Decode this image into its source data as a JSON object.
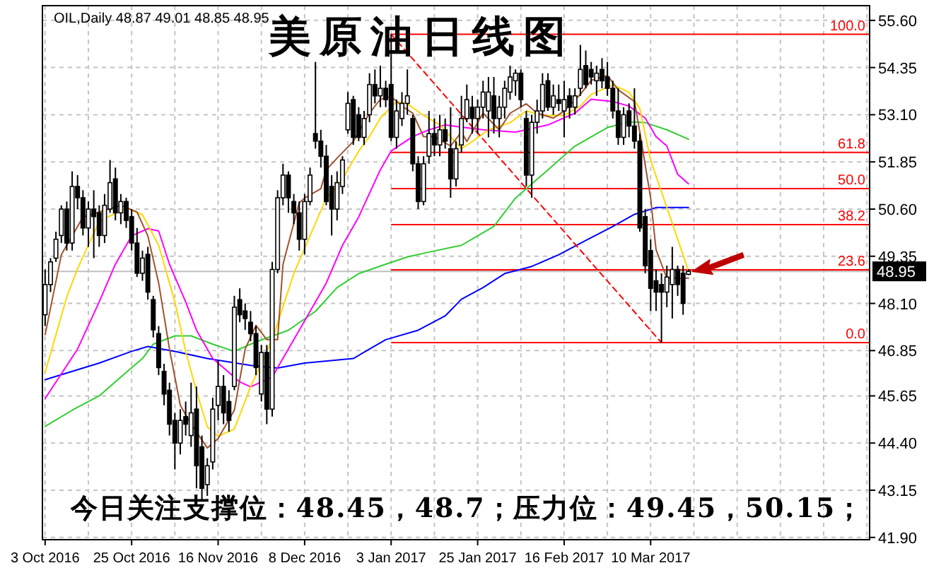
{
  "chart_data": {
    "type": "candlestick",
    "title": "美原油日线图",
    "subtitle": "OIL,Daily 48.87 49.01 48.85 48.95",
    "annotations": [
      "今日关注支撑位：48.45，48.7；压力位：49.45，50.15；",
      {
        "text": "100.0",
        "y": 55.23
      },
      {
        "text": "61.8",
        "y": 52.1
      },
      {
        "text": "50.0",
        "y": 51.14
      },
      {
        "text": "38.2",
        "y": 50.19
      },
      {
        "text": "23.6",
        "y": 48.99
      },
      {
        "text": "0.0",
        "y": 47.06
      }
    ],
    "categories": [
      "3 Oct 2016",
      null,
      null,
      null,
      null,
      null,
      null,
      null,
      null,
      null,
      null,
      null,
      null,
      null,
      null,
      null,
      "25 Oct 2016",
      null,
      null,
      null,
      null,
      null,
      null,
      null,
      null,
      null,
      null,
      null,
      null,
      null,
      null,
      null,
      "16 Nov 2016",
      null,
      null,
      null,
      null,
      null,
      null,
      null,
      null,
      null,
      null,
      null,
      null,
      null,
      null,
      null,
      "8 Dec 2016",
      null,
      null,
      null,
      null,
      null,
      null,
      null,
      null,
      null,
      null,
      null,
      null,
      null,
      null,
      null,
      "3 Jan 2017",
      null,
      null,
      null,
      null,
      null,
      null,
      null,
      null,
      null,
      null,
      null,
      null,
      null,
      null,
      null,
      "25 Jan 2017",
      null,
      null,
      null,
      null,
      null,
      null,
      null,
      null,
      null,
      null,
      null,
      null,
      null,
      null,
      null,
      "16 Feb 2017",
      null,
      null,
      null,
      null,
      null,
      null,
      null,
      null,
      null,
      null,
      null,
      null,
      null,
      null,
      null,
      "10 Mar 2017",
      null,
      null,
      null,
      null,
      null,
      null,
      null,
      null,
      null,
      null,
      null,
      null,
      null,
      null,
      null,
      null,
      null,
      null,
      null,
      null,
      null,
      null,
      null,
      null,
      null,
      null,
      null,
      null,
      null,
      null,
      null,
      null,
      null,
      null,
      null,
      null,
      null,
      null,
      null,
      null
    ],
    "ohlc": [
      [
        47.8,
        49.0,
        47.5,
        48.6
      ],
      [
        48.6,
        49.3,
        48.4,
        49.2
      ],
      [
        49.3,
        50.0,
        49.2,
        49.8
      ],
      [
        49.9,
        50.7,
        49.7,
        50.6
      ],
      [
        50.6,
        50.8,
        49.5,
        49.7
      ],
      [
        49.7,
        51.6,
        49.5,
        51.2
      ],
      [
        51.2,
        51.5,
        50.6,
        50.9
      ],
      [
        50.9,
        51.1,
        49.9,
        50.1
      ],
      [
        50.1,
        50.8,
        49.6,
        50.6
      ],
      [
        50.6,
        51.1,
        49.3,
        50.4
      ],
      [
        50.5,
        50.7,
        49.6,
        49.9
      ],
      [
        49.9,
        51.0,
        49.7,
        50.7
      ],
      [
        50.6,
        51.9,
        50.5,
        51.3
      ],
      [
        51.4,
        51.7,
        50.3,
        50.5
      ],
      [
        50.5,
        51.0,
        50.2,
        50.8
      ],
      [
        50.8,
        50.9,
        50.1,
        50.3
      ],
      [
        50.4,
        50.6,
        49.5,
        49.7
      ],
      [
        49.7,
        50.1,
        48.8,
        48.9
      ],
      [
        48.9,
        49.5,
        48.7,
        49.3
      ],
      [
        49.4,
        49.6,
        48.2,
        48.4
      ],
      [
        48.2,
        48.3,
        47.2,
        47.4
      ],
      [
        47.3,
        47.5,
        46.2,
        46.4
      ],
      [
        46.3,
        46.5,
        45.4,
        45.7
      ],
      [
        45.8,
        46.0,
        44.6,
        44.9
      ],
      [
        45.0,
        45.2,
        43.7,
        44.4
      ],
      [
        44.4,
        45.3,
        44.1,
        45.0
      ],
      [
        45.1,
        45.5,
        44.6,
        44.9
      ],
      [
        44.6,
        46.0,
        44.3,
        45.2
      ],
      [
        45.3,
        45.9,
        43.2,
        43.8
      ],
      [
        44.3,
        44.6,
        42.9,
        43.2
      ],
      [
        43.3,
        44.0,
        43.0,
        43.8
      ],
      [
        43.9,
        45.6,
        43.7,
        45.3
      ],
      [
        45.4,
        46.6,
        45.0,
        45.9
      ],
      [
        45.9,
        46.2,
        44.9,
        45.2
      ],
      [
        45.5,
        45.8,
        44.7,
        45.0
      ],
      [
        45.9,
        48.3,
        45.8,
        48.0
      ],
      [
        48.2,
        48.5,
        47.6,
        47.8
      ],
      [
        47.9,
        48.1,
        47.4,
        47.7
      ],
      [
        47.6,
        47.9,
        47.1,
        47.3
      ],
      [
        47.3,
        47.5,
        46.2,
        46.4
      ],
      [
        45.7,
        47.0,
        45.5,
        46.8
      ],
      [
        46.8,
        47.0,
        44.9,
        45.3
      ],
      [
        45.3,
        49.2,
        45.1,
        49.0
      ],
      [
        49.0,
        51.1,
        48.9,
        50.9
      ],
      [
        50.9,
        51.8,
        50.7,
        51.5
      ],
      [
        51.5,
        51.6,
        50.5,
        50.9
      ],
      [
        50.8,
        51.0,
        50.2,
        50.5
      ],
      [
        50.5,
        50.8,
        49.5,
        49.8
      ],
      [
        49.8,
        51.0,
        49.4,
        50.8
      ],
      [
        50.8,
        51.7,
        50.7,
        51.5
      ],
      [
        52.6,
        54.5,
        52.2,
        52.4
      ],
      [
        52.4,
        52.7,
        51.7,
        52.0
      ],
      [
        52.0,
        52.3,
        50.7,
        50.8
      ],
      [
        51.2,
        51.5,
        49.9,
        50.6
      ],
      [
        50.6,
        51.6,
        50.3,
        51.3
      ],
      [
        51.2,
        52.0,
        51.0,
        51.9
      ],
      [
        52.7,
        53.7,
        52.6,
        53.4
      ],
      [
        53.5,
        53.6,
        52.3,
        52.5
      ],
      [
        53.1,
        53.3,
        52.4,
        52.5
      ],
      [
        52.5,
        53.2,
        52.3,
        53.0
      ],
      [
        53.1,
        54.2,
        52.9,
        53.9
      ],
      [
        53.9,
        54.3,
        53.4,
        53.6
      ],
      [
        53.6,
        54.4,
        53.3,
        53.8
      ],
      [
        53.8,
        54.0,
        53.3,
        53.5
      ],
      [
        53.9,
        55.23,
        52.4,
        52.5
      ],
      [
        52.5,
        53.5,
        52.2,
        53.2
      ],
      [
        53.0,
        53.7,
        52.8,
        53.4
      ],
      [
        53.4,
        54.3,
        53.1,
        53.6
      ],
      [
        53.0,
        53.1,
        51.6,
        51.8
      ],
      [
        51.8,
        52.0,
        50.6,
        50.8
      ],
      [
        50.8,
        52.0,
        50.7,
        51.8
      ],
      [
        52.0,
        53.2,
        51.8,
        52.6
      ],
      [
        52.6,
        53.0,
        52.0,
        52.3
      ],
      [
        52.3,
        53.1,
        52.0,
        52.7
      ],
      [
        52.7,
        53.0,
        52.2,
        52.4
      ],
      [
        52.2,
        53.3,
        50.9,
        51.4
      ],
      [
        51.4,
        52.4,
        51.2,
        52.2
      ],
      [
        52.3,
        53.6,
        52.1,
        53.0
      ],
      [
        53.0,
        53.9,
        52.9,
        53.5
      ],
      [
        53.3,
        53.6,
        52.6,
        53.0
      ],
      [
        53.0,
        53.5,
        52.6,
        53.3
      ],
      [
        53.3,
        54.0,
        53.0,
        53.7
      ],
      [
        53.2,
        54.1,
        52.5,
        53.7
      ],
      [
        53.6,
        54.1,
        52.6,
        53.0
      ],
      [
        53.0,
        53.6,
        52.5,
        53.3
      ],
      [
        53.3,
        54.0,
        53.0,
        53.8
      ],
      [
        53.7,
        54.4,
        53.5,
        54.1
      ],
      [
        54.0,
        54.3,
        53.6,
        54.2
      ],
      [
        54.2,
        54.3,
        53.3,
        53.5
      ],
      [
        53.0,
        53.2,
        51.2,
        51.5
      ],
      [
        51.5,
        53.1,
        50.9,
        52.9
      ],
      [
        52.9,
        53.5,
        52.6,
        53.2
      ],
      [
        53.2,
        54.2,
        53.0,
        53.9
      ],
      [
        54.0,
        54.2,
        53.2,
        53.3
      ],
      [
        53.3,
        53.9,
        53.1,
        53.6
      ],
      [
        53.5,
        53.9,
        53.2,
        53.4
      ],
      [
        53.2,
        54.0,
        52.5,
        53.5
      ],
      [
        53.6,
        53.8,
        53.0,
        53.3
      ],
      [
        53.3,
        53.8,
        53.1,
        53.6
      ],
      [
        53.8,
        54.95,
        53.6,
        54.3
      ],
      [
        54.4,
        54.8,
        53.8,
        53.9
      ],
      [
        54.3,
        54.5,
        53.9,
        54.1
      ],
      [
        54.0,
        54.4,
        53.6,
        54.2
      ],
      [
        54.3,
        54.6,
        53.8,
        54.0
      ],
      [
        54.1,
        54.5,
        53.6,
        53.8
      ],
      [
        53.8,
        54.0,
        53.0,
        53.2
      ],
      [
        53.2,
        53.8,
        52.3,
        52.5
      ],
      [
        52.5,
        53.3,
        52.3,
        53.1
      ],
      [
        53.2,
        53.4,
        52.5,
        52.8
      ],
      [
        52.8,
        53.8,
        52.2,
        52.4
      ],
      [
        52.4,
        52.6,
        50.0,
        50.1
      ],
      [
        50.4,
        50.6,
        48.9,
        49.1
      ],
      [
        49.5,
        49.8,
        47.9,
        48.5
      ],
      [
        48.7,
        49.0,
        47.9,
        48.4
      ],
      [
        48.6,
        48.9,
        47.06,
        48.4
      ],
      [
        48.4,
        49.1,
        48.0,
        48.8
      ],
      [
        48.6,
        49.6,
        47.7,
        49.0
      ],
      [
        49.0,
        49.1,
        48.3,
        48.6
      ],
      [
        48.9,
        49.1,
        47.8,
        48.1
      ],
      [
        48.87,
        49.01,
        48.85,
        48.95
      ],
      null,
      null,
      null,
      null,
      null,
      null,
      null,
      null,
      null,
      null,
      null,
      null,
      null,
      null,
      null,
      null,
      null,
      null,
      null,
      null,
      null,
      null,
      null,
      null,
      null,
      null,
      null,
      null,
      null,
      null,
      null,
      null,
      null
    ],
    "series": [
      {
        "type": "line",
        "color": "#32cd32",
        "values": [
          44.84,
          null,
          null,
          null,
          null,
          45.27,
          null,
          null,
          null,
          null,
          45.65,
          null,
          null,
          null,
          46.15,
          null,
          null,
          null,
          46.64,
          null,
          47.02,
          null,
          null,
          null,
          47.24,
          null,
          null,
          47.24,
          null,
          null,
          null,
          47.02,
          null,
          null,
          null,
          46.83,
          null,
          null,
          null,
          47.08,
          null,
          null,
          null,
          null,
          null,
          47.39,
          null,
          null,
          null,
          null,
          47.89,
          null,
          null,
          null,
          48.52,
          null,
          null,
          null,
          48.89,
          null,
          null,
          null,
          null,
          49.14,
          null,
          null,
          null,
          49.33,
          null,
          null,
          null,
          49.46,
          null,
          null,
          null,
          null,
          null,
          49.64,
          null,
          null,
          49.89,
          null,
          null,
          50.14,
          null,
          null,
          null,
          50.89,
          null,
          null,
          null,
          null,
          null,
          51.64,
          null,
          null,
          null,
          null,
          52.27,
          null,
          null,
          null,
          null,
          null,
          52.76,
          null,
          null,
          null,
          52.91,
          null,
          null,
          52.89,
          null,
          null,
          null,
          52.7,
          null,
          null,
          null,
          52.45,
          null,
          null,
          null,
          null,
          null,
          null,
          null,
          null,
          null,
          null,
          null,
          null,
          null,
          null,
          null,
          null,
          null,
          null,
          null,
          null,
          null,
          null,
          null,
          null,
          null,
          null,
          null,
          null,
          null,
          null,
          null,
          null,
          null
        ]
      },
      {
        "type": "line",
        "color": "#0000ff",
        "values": [
          46.08,
          null,
          null,
          null,
          null,
          null,
          null,
          null,
          null,
          null,
          46.52,
          null,
          null,
          null,
          null,
          null,
          46.83,
          null,
          null,
          46.96,
          null,
          null,
          null,
          null,
          46.83,
          null,
          null,
          null,
          null,
          null,
          46.64,
          null,
          null,
          null,
          null,
          null,
          null,
          null,
          46.46,
          null,
          null,
          null,
          null,
          46.39,
          null,
          null,
          null,
          null,
          46.52,
          null,
          null,
          null,
          null,
          null,
          null,
          null,
          null,
          46.64,
          null,
          null,
          46.89,
          null,
          null,
          47.14,
          null,
          null,
          null,
          null,
          null,
          47.39,
          null,
          null,
          null,
          null,
          47.77,
          null,
          null,
          48.21,
          null,
          null,
          null,
          48.52,
          null,
          null,
          null,
          48.89,
          null,
          null,
          null,
          null,
          49.08,
          null,
          null,
          null,
          null,
          49.39,
          null,
          null,
          null,
          null,
          49.77,
          null,
          null,
          null,
          null,
          50.14,
          null,
          null,
          null,
          50.46,
          null,
          null,
          null,
          50.64,
          null,
          null,
          null,
          null,
          null,
          50.64,
          null,
          null,
          null,
          null,
          null,
          null,
          null,
          null,
          null,
          null,
          null,
          null,
          null,
          null,
          null,
          null,
          null,
          null,
          null,
          null,
          null,
          null,
          null,
          null,
          null,
          null,
          null,
          null,
          null,
          null,
          null,
          null,
          null
        ]
      },
      {
        "type": "line",
        "color": "#ff00ff",
        "values": [
          45.58,
          null,
          null,
          null,
          null,
          null,
          46.89,
          null,
          null,
          null,
          48.14,
          null,
          null,
          49.14,
          null,
          null,
          49.89,
          null,
          null,
          50.08,
          null,
          50.02,
          null,
          49.14,
          null,
          null,
          48.14,
          null,
          47.39,
          null,
          null,
          46.64,
          null,
          null,
          46.27,
          null,
          46.02,
          null,
          45.89,
          null,
          null,
          null,
          46.15,
          null,
          null,
          null,
          null,
          47.39,
          null,
          null,
          null,
          null,
          48.64,
          null,
          null,
          49.64,
          null,
          null,
          50.39,
          null,
          51.02,
          null,
          51.64,
          null,
          52.14,
          null,
          null,
          null,
          52.52,
          null,
          null,
          52.7,
          null,
          null,
          52.83,
          null,
          52.79,
          null,
          null,
          null,
          null,
          52.7,
          null,
          null,
          null,
          null,
          null,
          52.64,
          null,
          null,
          null,
          null,
          null,
          52.83,
          null,
          null,
          null,
          null,
          53.14,
          null,
          null,
          53.51,
          null,
          null,
          null,
          53.45,
          null,
          null,
          53.33,
          null,
          null,
          53.01,
          null,
          52.52,
          null,
          52.27,
          null,
          51.52,
          null,
          51.27,
          null,
          null,
          null,
          null,
          null,
          null,
          null,
          null,
          null,
          null,
          null,
          null,
          null,
          null,
          null,
          null,
          null,
          null,
          null,
          null,
          null,
          null,
          null,
          null,
          null,
          null,
          null,
          null,
          null,
          null,
          null,
          null,
          null
        ]
      },
      {
        "type": "line",
        "color": "#ffd700",
        "values": [
          46.27,
          null,
          null,
          null,
          48.27,
          null,
          49.02,
          null,
          null,
          null,
          50.27,
          null,
          null,
          null,
          null,
          50.64,
          null,
          null,
          50.45,
          null,
          null,
          49.64,
          null,
          null,
          48.14,
          null,
          46.83,
          null,
          45.77,
          null,
          44.83,
          null,
          44.58,
          null,
          null,
          44.77,
          null,
          null,
          45.89,
          null,
          null,
          null,
          47.14,
          null,
          null,
          null,
          48.89,
          null,
          null,
          49.89,
          null,
          null,
          50.89,
          null,
          null,
          51.39,
          null,
          null,
          52.14,
          null,
          52.52,
          null,
          53.01,
          null,
          null,
          53.45,
          null,
          53.39,
          null,
          null,
          53.08,
          null,
          null,
          52.83,
          null,
          52.52,
          null,
          52.2,
          null,
          52.39,
          null,
          null,
          52.7,
          null,
          null,
          null,
          52.89,
          null,
          null,
          53.2,
          null,
          null,
          53.08,
          null,
          null,
          null,
          53.08,
          null,
          null,
          53.33,
          null,
          53.64,
          null,
          null,
          null,
          53.89,
          null,
          null,
          53.7,
          null,
          53.26,
          null,
          51.89,
          null,
          null,
          50.64,
          null,
          null,
          null,
          48.96,
          null,
          null,
          null,
          null,
          null,
          null,
          null,
          null,
          null,
          null,
          null,
          null,
          null,
          null,
          null,
          null,
          null,
          null,
          null,
          null,
          null,
          null,
          null,
          null,
          null,
          null,
          null,
          null,
          null,
          null,
          null,
          null,
          null
        ]
      },
      {
        "type": "line",
        "color": "#a0522d",
        "values": [
          47.27,
          null,
          null,
          49.39,
          null,
          null,
          null,
          50.39,
          null,
          null,
          null,
          null,
          null,
          null,
          50.7,
          null,
          null,
          50.52,
          null,
          49.89,
          null,
          48.64,
          null,
          46.89,
          null,
          45.4,
          null,
          44.9,
          null,
          null,
          44.27,
          null,
          44.52,
          null,
          null,
          45.27,
          null,
          46.89,
          null,
          47.52,
          null,
          47.14,
          null,
          47.14,
          49.14,
          null,
          null,
          50.77,
          50.89,
          null,
          null,
          51.14,
          51.64,
          null,
          51.95,
          null,
          null,
          52.39,
          null,
          null,
          53.14,
          null,
          53.51,
          null,
          53.58,
          null,
          53.33,
          null,
          53.14,
          null,
          52.52,
          null,
          52.52,
          null,
          null,
          52.27,
          null,
          52.64,
          52.39,
          null,
          null,
          53.14,
          null,
          null,
          52.7,
          null,
          53.14,
          null,
          null,
          53.39,
          null,
          53.14,
          null,
          null,
          53.01,
          null,
          53.2,
          null,
          null,
          53.64,
          null,
          54.01,
          null,
          null,
          54.14,
          null,
          53.76,
          null,
          null,
          53.45,
          52.64,
          null,
          50.89,
          49.52,
          null,
          48.77,
          null,
          null,
          null,
          48.77,
          null,
          null,
          null,
          null,
          null,
          null,
          null,
          null,
          null,
          null,
          null,
          null,
          null,
          null,
          null,
          null,
          null,
          null,
          null,
          null,
          null,
          null,
          null,
          null,
          null,
          null,
          null,
          null,
          null,
          null,
          null,
          null,
          null
        ]
      },
      {
        "type": "line",
        "color": "#ff0000",
        "line_style": "dashed",
        "values": [
          null,
          null,
          null,
          null,
          null,
          null,
          null,
          null,
          null,
          null,
          null,
          null,
          null,
          null,
          null,
          null,
          null,
          null,
          null,
          null,
          null,
          null,
          null,
          null,
          null,
          null,
          null,
          null,
          null,
          null,
          null,
          null,
          null,
          null,
          null,
          null,
          null,
          null,
          null,
          null,
          null,
          null,
          null,
          null,
          null,
          null,
          null,
          null,
          null,
          null,
          null,
          null,
          null,
          null,
          null,
          null,
          null,
          null,
          null,
          null,
          null,
          null,
          null,
          null,
          55.23,
          null,
          null,
          null,
          null,
          null,
          null,
          null,
          null,
          null,
          null,
          null,
          null,
          null,
          null,
          null,
          null,
          null,
          null,
          null,
          null,
          null,
          null,
          null,
          null,
          null,
          null,
          null,
          null,
          null,
          null,
          null,
          null,
          null,
          null,
          null,
          null,
          null,
          null,
          null,
          null,
          null,
          null,
          null,
          null,
          null,
          null,
          null,
          null,
          null,
          47.06,
          null,
          null,
          null,
          null,
          null,
          null,
          null,
          null,
          null,
          null,
          null,
          null,
          null,
          null,
          null,
          null,
          null,
          null,
          null,
          null,
          null,
          null,
          null,
          null,
          null,
          null,
          null,
          null,
          null,
          null,
          null,
          null,
          null,
          null,
          null,
          null,
          null,
          null
        ]
      }
    ],
    "ylim": [
      41.84,
      55.99
    ],
    "yticks": [
      {
        "value": 55.6,
        "label": "55.60"
      },
      54.35,
      {
        "value": 53.1,
        "label": "53.10"
      },
      51.85,
      {
        "value": 50.6,
        "label": "50.60"
      },
      49.35,
      {
        "value": 48.1,
        "label": "48.10"
      },
      46.85,
      45.65,
      {
        "value": 44.4,
        "label": "44.40"
      },
      43.15,
      {
        "value": 41.9,
        "label": "41.90"
      }
    ],
    "grid": true,
    "ref_lines": [
      {
        "axis": "y",
        "value": 55.23,
        "color": "#ff0000"
      },
      {
        "axis": "y",
        "value": 52.1,
        "color": "#ff0000"
      },
      {
        "axis": "y",
        "value": 51.14,
        "color": "#ff0000"
      },
      {
        "axis": "y",
        "value": 50.19,
        "color": "#ff0000"
      },
      {
        "axis": "y",
        "value": 48.99,
        "color": "#ff0000"
      },
      {
        "axis": "y",
        "value": 47.06,
        "color": "#ff0000"
      },
      {
        "axis": "y",
        "value": 48.95,
        "label": "48.95",
        "color": "#c0c0c0"
      }
    ]
  }
}
